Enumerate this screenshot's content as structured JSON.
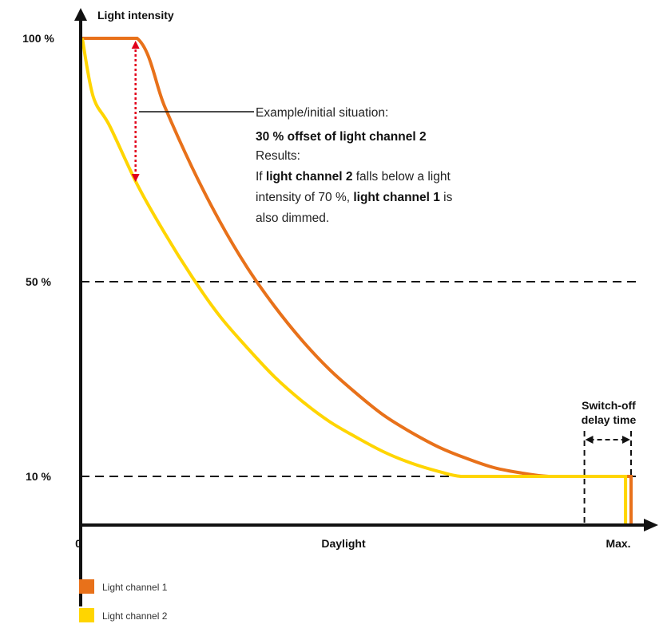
{
  "chart_data": {
    "type": "line",
    "ylabel": "Light intensity",
    "xlabel": "Daylight",
    "x_tick_labels": [
      "0",
      "Max."
    ],
    "y_ticks": [
      {
        "value": 100,
        "label": "100 %"
      },
      {
        "value": 50,
        "label": "50 %"
      },
      {
        "value": 10,
        "label": "10 %"
      }
    ],
    "xlim": [
      0,
      100
    ],
    "ylim": [
      0,
      110
    ],
    "grid": "dashed horizontal reference lines at 50 % and 10 %",
    "series": [
      {
        "name": "Light channel 1",
        "color": "#E8711A",
        "points": [
          [
            0,
            100
          ],
          [
            10,
            100
          ],
          [
            15,
            86
          ],
          [
            20,
            73.5
          ],
          [
            25,
            62.5
          ],
          [
            30,
            53
          ],
          [
            35,
            45
          ],
          [
            40,
            38
          ],
          [
            45,
            32
          ],
          [
            50,
            27
          ],
          [
            55,
            22.5
          ],
          [
            60,
            19
          ],
          [
            65,
            16
          ],
          [
            70,
            13.7
          ],
          [
            75,
            11.8
          ],
          [
            80,
            10.7
          ],
          [
            85,
            10
          ],
          [
            92,
            10
          ],
          [
            100,
            10
          ],
          [
            100,
            0
          ]
        ]
      },
      {
        "name": "Light channel 2",
        "color": "#FFD500",
        "points": [
          [
            0,
            100
          ],
          [
            2,
            88
          ],
          [
            5,
            82
          ],
          [
            10,
            70
          ],
          [
            15,
            60
          ],
          [
            20,
            51
          ],
          [
            25,
            43
          ],
          [
            30,
            36.5
          ],
          [
            35,
            30.5
          ],
          [
            40,
            25.5
          ],
          [
            45,
            21.3
          ],
          [
            50,
            18
          ],
          [
            55,
            15
          ],
          [
            60,
            12.7
          ],
          [
            65,
            11
          ],
          [
            69,
            10
          ],
          [
            75,
            10
          ],
          [
            85,
            10
          ],
          [
            99,
            10
          ],
          [
            99,
            0
          ]
        ]
      }
    ],
    "offset_marker": {
      "x": 10,
      "from": 100,
      "to": 70,
      "color": "#E2001A"
    },
    "annotation": {
      "line1": "Example/initial situation:",
      "line2": "30 % offset of light channel 2",
      "line3": "Results:",
      "line4_a": "If ",
      "line4_b": "light channel 2",
      "line4_c": " falls below a light",
      "line5": "intensity of 70 %, ",
      "line5_b": "light channel 1",
      "line5_c": " is",
      "line6": "also dimmed."
    },
    "delay_label": [
      "Switch-off",
      "delay time"
    ],
    "delay_span": [
      91.5,
      100
    ],
    "legend": [
      {
        "label": "Light channel 1",
        "color": "#E8711A"
      },
      {
        "label": "Light channel 2",
        "color": "#FFD500"
      }
    ]
  }
}
